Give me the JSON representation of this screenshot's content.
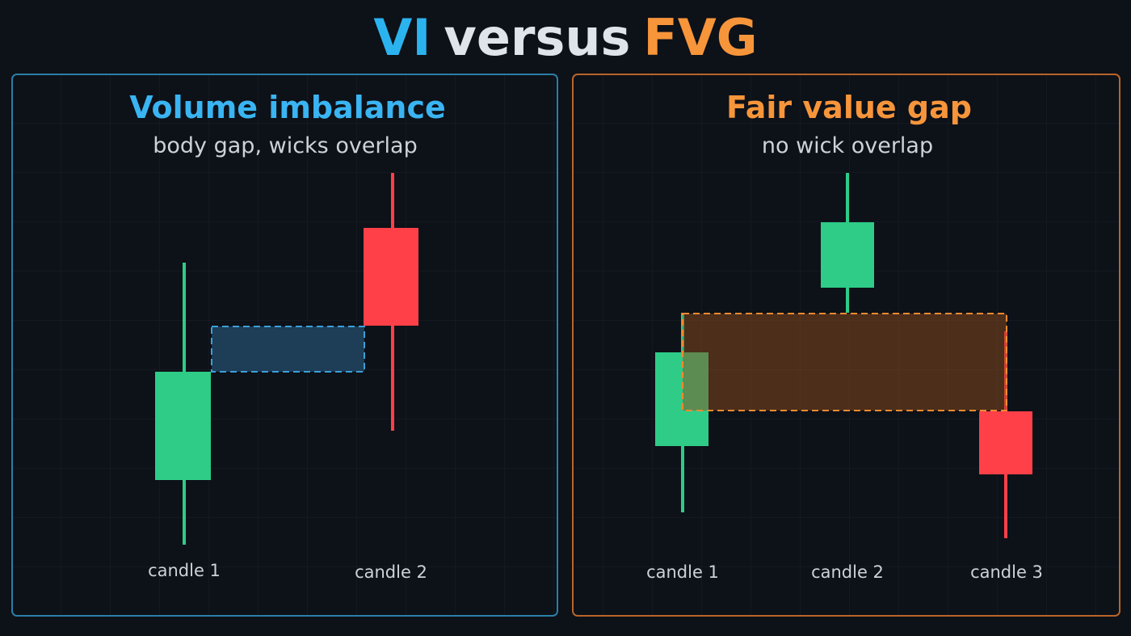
{
  "title": {
    "left": "VI",
    "middle": "versus",
    "right": "FVG"
  },
  "panels": [
    {
      "title": "Volume imbalance",
      "subtitle": "body gap, wicks overlap",
      "candles": [
        "candle 1",
        "candle 2"
      ]
    },
    {
      "title": "Fair value gap",
      "subtitle": "no wick overlap",
      "candles": [
        "candle 1",
        "candle 2",
        "candle 3"
      ]
    }
  ]
}
